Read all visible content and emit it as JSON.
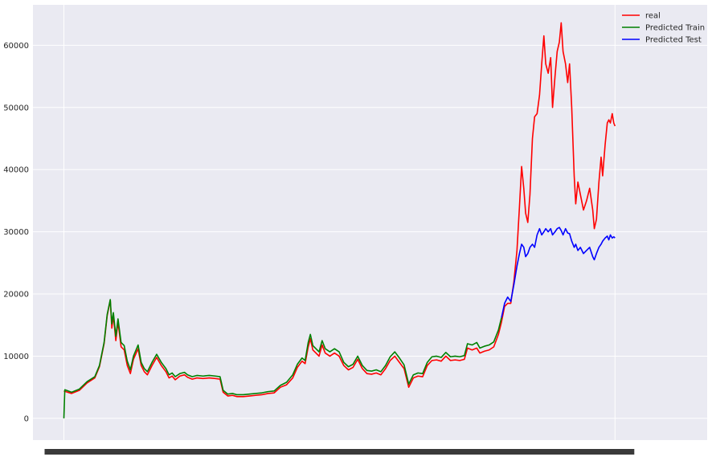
{
  "chart_data": {
    "type": "line",
    "title": "",
    "xlabel": "",
    "ylabel": "",
    "ylim": [
      -3500,
      66500
    ],
    "yticks": [
      0,
      10000,
      20000,
      30000,
      40000,
      50000,
      60000
    ],
    "ytick_labels": [
      "0",
      "10000",
      "20000",
      "30000",
      "40000",
      "50000",
      "60000"
    ],
    "xlim": [
      -100,
      2080
    ],
    "x_tick_labels_overlapping": true,
    "grid": true,
    "legend_position": "upper-right",
    "legend": [
      "real",
      "Predicted Train",
      "Predicted Test"
    ],
    "colors": {
      "real": "#ff0000",
      "train": "#008000",
      "test": "#0000ff",
      "background": "#eaeaf2",
      "grid": "#ffffff"
    },
    "series": [
      {
        "name": "real",
        "color": "#ff0000",
        "points": [
          [
            0,
            4400
          ],
          [
            25,
            4000
          ],
          [
            50,
            4500
          ],
          [
            75,
            5700
          ],
          [
            100,
            6500
          ],
          [
            115,
            8300
          ],
          [
            130,
            12000
          ],
          [
            140,
            16500
          ],
          [
            150,
            19000
          ],
          [
            155,
            14500
          ],
          [
            160,
            16500
          ],
          [
            168,
            12500
          ],
          [
            175,
            15500
          ],
          [
            185,
            11500
          ],
          [
            195,
            11000
          ],
          [
            205,
            8500
          ],
          [
            215,
            7200
          ],
          [
            225,
            9500
          ],
          [
            240,
            11200
          ],
          [
            250,
            8500
          ],
          [
            260,
            7500
          ],
          [
            270,
            7000
          ],
          [
            285,
            8500
          ],
          [
            300,
            9800
          ],
          [
            315,
            8500
          ],
          [
            330,
            7500
          ],
          [
            340,
            6500
          ],
          [
            350,
            6800
          ],
          [
            360,
            6200
          ],
          [
            375,
            6800
          ],
          [
            390,
            7000
          ],
          [
            400,
            6600
          ],
          [
            415,
            6300
          ],
          [
            430,
            6500
          ],
          [
            450,
            6400
          ],
          [
            470,
            6500
          ],
          [
            490,
            6400
          ],
          [
            505,
            6300
          ],
          [
            515,
            4200
          ],
          [
            530,
            3600
          ],
          [
            545,
            3700
          ],
          [
            560,
            3500
          ],
          [
            580,
            3500
          ],
          [
            600,
            3600
          ],
          [
            620,
            3700
          ],
          [
            640,
            3800
          ],
          [
            660,
            4000
          ],
          [
            680,
            4100
          ],
          [
            700,
            5000
          ],
          [
            720,
            5400
          ],
          [
            740,
            6500
          ],
          [
            755,
            8200
          ],
          [
            770,
            9200
          ],
          [
            780,
            8800
          ],
          [
            790,
            11500
          ],
          [
            797,
            12800
          ],
          [
            805,
            11000
          ],
          [
            815,
            10500
          ],
          [
            825,
            10000
          ],
          [
            835,
            11800
          ],
          [
            845,
            10500
          ],
          [
            860,
            10000
          ],
          [
            875,
            10500
          ],
          [
            890,
            10000
          ],
          [
            905,
            8500
          ],
          [
            920,
            7800
          ],
          [
            935,
            8200
          ],
          [
            950,
            9500
          ],
          [
            965,
            8000
          ],
          [
            980,
            7200
          ],
          [
            995,
            7100
          ],
          [
            1010,
            7300
          ],
          [
            1025,
            7000
          ],
          [
            1040,
            8000
          ],
          [
            1055,
            9300
          ],
          [
            1070,
            10000
          ],
          [
            1085,
            9000
          ],
          [
            1100,
            8000
          ],
          [
            1115,
            5000
          ],
          [
            1130,
            6500
          ],
          [
            1145,
            6800
          ],
          [
            1160,
            6700
          ],
          [
            1175,
            8500
          ],
          [
            1190,
            9300
          ],
          [
            1205,
            9400
          ],
          [
            1220,
            9200
          ],
          [
            1235,
            10000
          ],
          [
            1250,
            9300
          ],
          [
            1265,
            9400
          ],
          [
            1280,
            9300
          ],
          [
            1295,
            9500
          ],
          [
            1305,
            11300
          ],
          [
            1320,
            11000
          ],
          [
            1335,
            11300
          ],
          [
            1345,
            10500
          ],
          [
            1360,
            10800
          ],
          [
            1375,
            11000
          ],
          [
            1390,
            11500
          ],
          [
            1405,
            13500
          ],
          [
            1415,
            15500
          ],
          [
            1425,
            18000
          ],
          [
            1435,
            18500
          ],
          [
            1445,
            18500
          ],
          [
            1455,
            22000
          ],
          [
            1465,
            27000
          ],
          [
            1473,
            34000
          ],
          [
            1480,
            40500
          ],
          [
            1487,
            37000
          ],
          [
            1493,
            33000
          ],
          [
            1500,
            31500
          ],
          [
            1507,
            36000
          ],
          [
            1515,
            45000
          ],
          [
            1522,
            48500
          ],
          [
            1530,
            49000
          ],
          [
            1538,
            52000
          ],
          [
            1545,
            57000
          ],
          [
            1552,
            61500
          ],
          [
            1558,
            57000
          ],
          [
            1566,
            55500
          ],
          [
            1574,
            58000
          ],
          [
            1580,
            50000
          ],
          [
            1588,
            55000
          ],
          [
            1595,
            59000
          ],
          [
            1602,
            60500
          ],
          [
            1608,
            63600
          ],
          [
            1614,
            59000
          ],
          [
            1622,
            57000
          ],
          [
            1629,
            54000
          ],
          [
            1635,
            57000
          ],
          [
            1642,
            50000
          ],
          [
            1650,
            39000
          ],
          [
            1655,
            34500
          ],
          [
            1662,
            38000
          ],
          [
            1670,
            36000
          ],
          [
            1680,
            33500
          ],
          [
            1690,
            35000
          ],
          [
            1700,
            37000
          ],
          [
            1710,
            33500
          ],
          [
            1715,
            30500
          ],
          [
            1722,
            32000
          ],
          [
            1730,
            38000
          ],
          [
            1737,
            42000
          ],
          [
            1742,
            39000
          ],
          [
            1750,
            44000
          ],
          [
            1757,
            47500
          ],
          [
            1762,
            48000
          ],
          [
            1767,
            47500
          ],
          [
            1773,
            49000
          ],
          [
            1778,
            47500
          ],
          [
            1782,
            47000
          ]
        ]
      },
      {
        "name": "Predicted Train",
        "color": "#008000",
        "points": [
          [
            0,
            0
          ],
          [
            3,
            4600
          ],
          [
            25,
            4200
          ],
          [
            50,
            4700
          ],
          [
            75,
            5900
          ],
          [
            100,
            6700
          ],
          [
            115,
            8500
          ],
          [
            130,
            12200
          ],
          [
            140,
            16700
          ],
          [
            150,
            19100
          ],
          [
            155,
            15200
          ],
          [
            160,
            17000
          ],
          [
            168,
            13200
          ],
          [
            175,
            16000
          ],
          [
            185,
            12200
          ],
          [
            195,
            11700
          ],
          [
            205,
            9200
          ],
          [
            215,
            7800
          ],
          [
            225,
            10000
          ],
          [
            240,
            11800
          ],
          [
            250,
            9000
          ],
          [
            260,
            8000
          ],
          [
            270,
            7500
          ],
          [
            285,
            9000
          ],
          [
            300,
            10300
          ],
          [
            315,
            9000
          ],
          [
            330,
            8000
          ],
          [
            340,
            7000
          ],
          [
            350,
            7300
          ],
          [
            360,
            6700
          ],
          [
            375,
            7200
          ],
          [
            390,
            7400
          ],
          [
            400,
            7000
          ],
          [
            415,
            6700
          ],
          [
            430,
            6900
          ],
          [
            450,
            6800
          ],
          [
            470,
            6900
          ],
          [
            490,
            6800
          ],
          [
            505,
            6700
          ],
          [
            515,
            4500
          ],
          [
            530,
            3900
          ],
          [
            545,
            4000
          ],
          [
            560,
            3800
          ],
          [
            580,
            3800
          ],
          [
            600,
            3900
          ],
          [
            620,
            4000
          ],
          [
            640,
            4100
          ],
          [
            660,
            4300
          ],
          [
            680,
            4400
          ],
          [
            700,
            5300
          ],
          [
            720,
            5800
          ],
          [
            740,
            7000
          ],
          [
            755,
            8700
          ],
          [
            770,
            9700
          ],
          [
            780,
            9300
          ],
          [
            790,
            12200
          ],
          [
            797,
            13500
          ],
          [
            805,
            11700
          ],
          [
            815,
            11200
          ],
          [
            825,
            10700
          ],
          [
            835,
            12500
          ],
          [
            845,
            11200
          ],
          [
            860,
            10700
          ],
          [
            875,
            11200
          ],
          [
            890,
            10700
          ],
          [
            905,
            9000
          ],
          [
            920,
            8300
          ],
          [
            935,
            8700
          ],
          [
            950,
            10000
          ],
          [
            965,
            8500
          ],
          [
            980,
            7700
          ],
          [
            995,
            7600
          ],
          [
            1010,
            7800
          ],
          [
            1025,
            7500
          ],
          [
            1040,
            8500
          ],
          [
            1055,
            9900
          ],
          [
            1070,
            10700
          ],
          [
            1085,
            9700
          ],
          [
            1100,
            8600
          ],
          [
            1115,
            5500
          ],
          [
            1130,
            7000
          ],
          [
            1145,
            7300
          ],
          [
            1160,
            7200
          ],
          [
            1175,
            9000
          ],
          [
            1190,
            9900
          ],
          [
            1205,
            10000
          ],
          [
            1220,
            9800
          ],
          [
            1235,
            10600
          ],
          [
            1250,
            9900
          ],
          [
            1265,
            10000
          ],
          [
            1280,
            9900
          ],
          [
            1295,
            10100
          ],
          [
            1305,
            12000
          ],
          [
            1320,
            11800
          ],
          [
            1335,
            12200
          ],
          [
            1345,
            11300
          ],
          [
            1360,
            11600
          ],
          [
            1375,
            11800
          ],
          [
            1390,
            12300
          ],
          [
            1405,
            14200
          ],
          [
            1415,
            16200
          ]
        ]
      },
      {
        "name": "Predicted Test",
        "color": "#0000ff",
        "points": [
          [
            1415,
            16200
          ],
          [
            1425,
            18500
          ],
          [
            1435,
            19500
          ],
          [
            1445,
            18800
          ],
          [
            1455,
            21500
          ],
          [
            1465,
            24500
          ],
          [
            1473,
            26500
          ],
          [
            1480,
            28000
          ],
          [
            1487,
            27500
          ],
          [
            1493,
            26000
          ],
          [
            1500,
            26500
          ],
          [
            1507,
            27500
          ],
          [
            1515,
            28000
          ],
          [
            1522,
            27500
          ],
          [
            1530,
            29500
          ],
          [
            1538,
            30500
          ],
          [
            1545,
            29500
          ],
          [
            1552,
            30000
          ],
          [
            1558,
            30500
          ],
          [
            1566,
            30000
          ],
          [
            1574,
            30500
          ],
          [
            1580,
            29500
          ],
          [
            1588,
            30000
          ],
          [
            1595,
            30500
          ],
          [
            1602,
            30700
          ],
          [
            1608,
            30200
          ],
          [
            1614,
            29500
          ],
          [
            1622,
            30500
          ],
          [
            1629,
            29800
          ],
          [
            1635,
            29700
          ],
          [
            1642,
            28500
          ],
          [
            1650,
            27500
          ],
          [
            1655,
            28000
          ],
          [
            1662,
            27000
          ],
          [
            1670,
            27500
          ],
          [
            1680,
            26500
          ],
          [
            1690,
            27000
          ],
          [
            1700,
            27500
          ],
          [
            1710,
            26000
          ],
          [
            1715,
            25500
          ],
          [
            1722,
            26500
          ],
          [
            1730,
            27500
          ],
          [
            1737,
            28000
          ],
          [
            1742,
            28500
          ],
          [
            1750,
            29000
          ],
          [
            1757,
            29300
          ],
          [
            1762,
            28700
          ],
          [
            1767,
            29500
          ],
          [
            1773,
            29000
          ],
          [
            1778,
            29200
          ],
          [
            1782,
            29000
          ]
        ]
      }
    ]
  }
}
